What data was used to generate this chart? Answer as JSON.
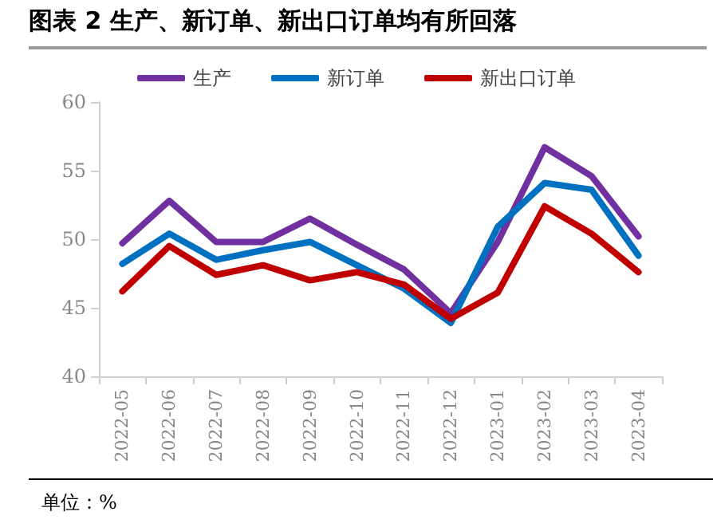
{
  "chart_data": {
    "type": "line",
    "title": "图表 2 生产、新订单、新出口订单均有所回落",
    "categories": [
      "2022-05",
      "2022-06",
      "2022-07",
      "2022-08",
      "2022-09",
      "2022-10",
      "2022-11",
      "2022-12",
      "2023-01",
      "2023-02",
      "2023-03",
      "2023-04"
    ],
    "series": [
      {
        "name": "生产",
        "color": "#7030a0",
        "values": [
          49.7,
          52.8,
          49.8,
          49.8,
          51.5,
          49.6,
          47.8,
          44.6,
          49.8,
          56.7,
          54.6,
          50.2
        ]
      },
      {
        "name": "新订单",
        "color": "#0070c0",
        "values": [
          48.2,
          50.4,
          48.5,
          49.2,
          49.8,
          48.1,
          46.4,
          43.9,
          50.9,
          54.1,
          53.6,
          48.8
        ]
      },
      {
        "name": "新出口订单",
        "color": "#c00000",
        "values": [
          46.2,
          49.5,
          47.4,
          48.1,
          47.0,
          47.6,
          46.7,
          44.2,
          46.1,
          52.4,
          50.4,
          47.6
        ]
      }
    ],
    "ylim": [
      40,
      60
    ],
    "yticks": [
      40,
      45,
      50,
      55,
      60
    ],
    "grid": false,
    "legend": "top",
    "marker": "none",
    "line_style": "solid",
    "annotations": [
      "单位：%"
    ]
  }
}
